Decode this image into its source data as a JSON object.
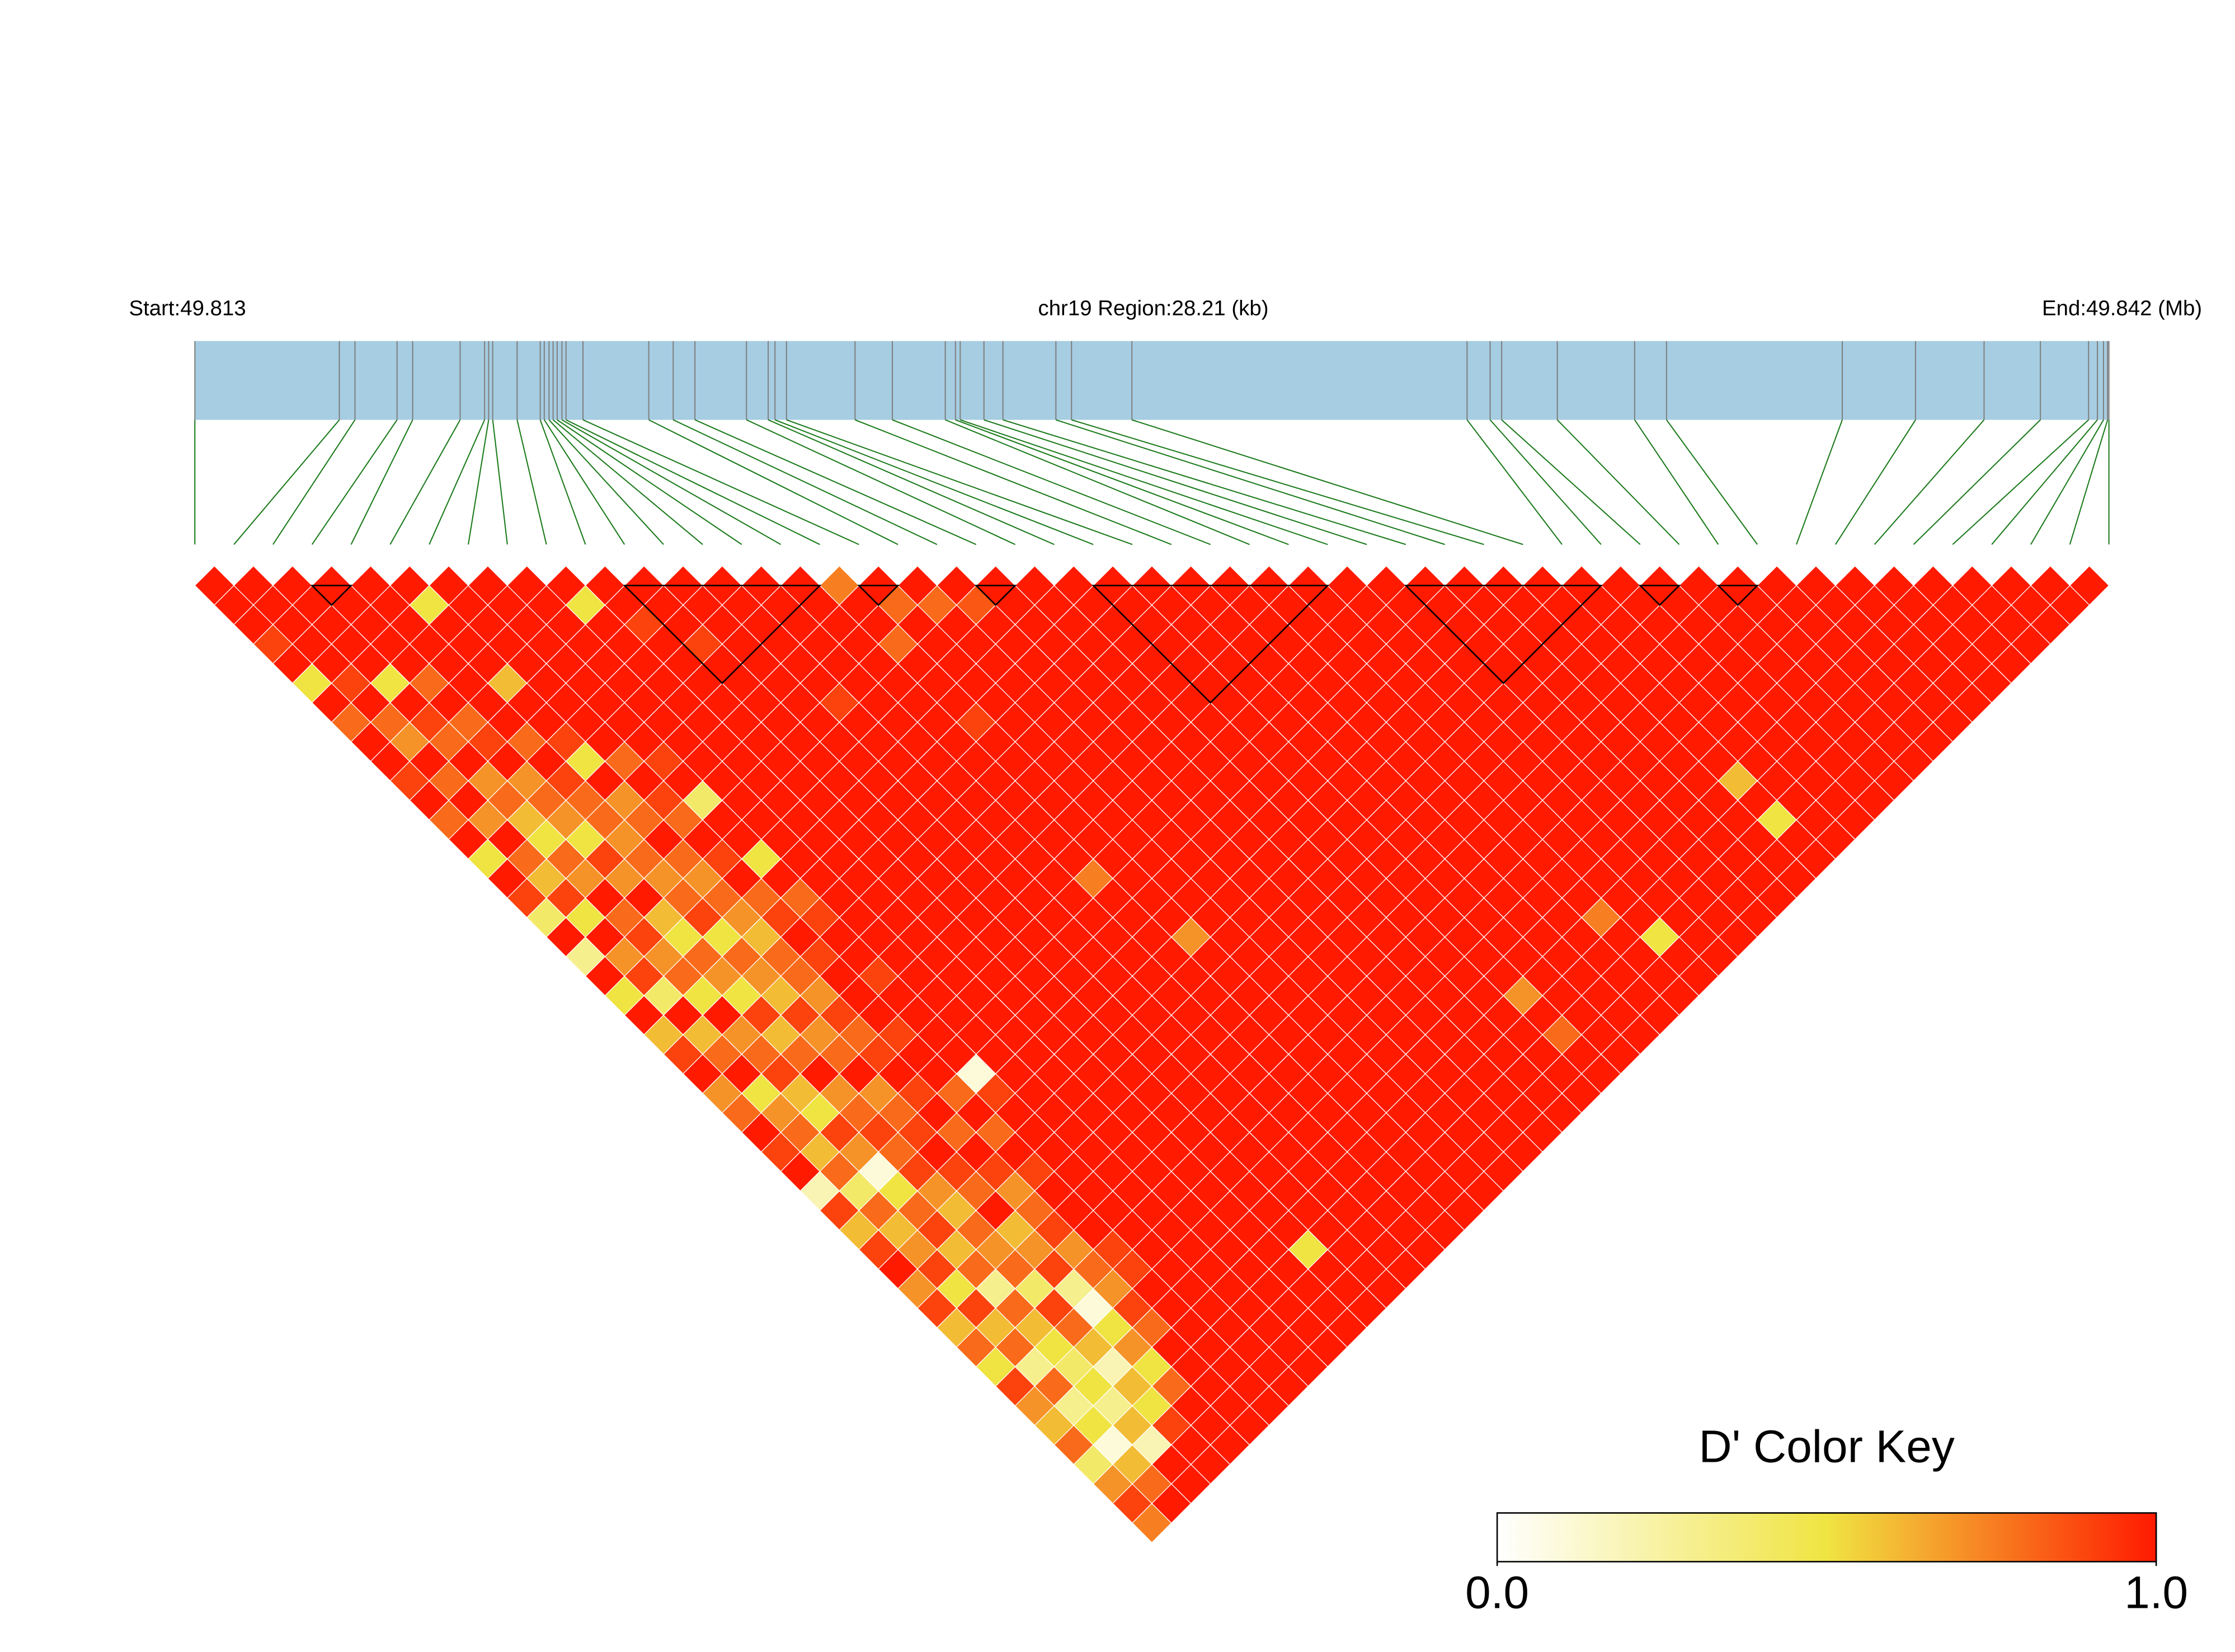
{
  "chart_data": {
    "type": "ld-heatmap",
    "start_label": "Start:49.813",
    "region_label": "chr19 Region:28.21 (kb)",
    "end_label": "End:49.842 (Mb)",
    "xlim": [
      0,
      28.21
    ],
    "positions": [
      0,
      2.13,
      2.36,
      2.98,
      3.21,
      3.91,
      4.27,
      4.33,
      4.39,
      4.75,
      5.09,
      5.15,
      5.22,
      5.28,
      5.34,
      5.41,
      5.47,
      5.72,
      6.69,
      7.05,
      7.37,
      8.13,
      8.45,
      8.55,
      8.72,
      9.73,
      10.28,
      11.06,
      11.21,
      11.28,
      11.63,
      11.91,
      12.69,
      12.92,
      13.81,
      18.75,
      19.09,
      19.26,
      20.08,
      21.22,
      21.69,
      24.28,
      25.36,
      26.37,
      27.2,
      27.91,
      28.04,
      28.13,
      28.19,
      28.21
    ],
    "bar_color": "#a6cde2",
    "marker_color": "#808080",
    "connector_color": "#1a7a1a",
    "blocks": [
      [
        3,
        4
      ],
      [
        11,
        16
      ],
      [
        17,
        18
      ],
      [
        20,
        21
      ],
      [
        23,
        29
      ],
      [
        31,
        36
      ],
      [
        37,
        38
      ],
      [
        39,
        40
      ]
    ],
    "dprime": [
      [
        1
      ],
      [
        1,
        1
      ],
      [
        1,
        1,
        1
      ],
      [
        0.9,
        1,
        1,
        1
      ],
      [
        1,
        1,
        1,
        1,
        1
      ],
      [
        0.5,
        1,
        1,
        1,
        1,
        1
      ],
      [
        1,
        0.9,
        1,
        1,
        1,
        0.5,
        1
      ],
      [
        0.8,
        1,
        0.5,
        1,
        1,
        1,
        1,
        1
      ],
      [
        1,
        0.8,
        1,
        0.8,
        1,
        1,
        1,
        1,
        1
      ],
      [
        1,
        0.7,
        0.9,
        1,
        1,
        1,
        1,
        1,
        1,
        1
      ],
      [
        0.9,
        1,
        0.8,
        0.8,
        1,
        0.6,
        1,
        1,
        1,
        0.5,
        1
      ],
      [
        1,
        0.8,
        1,
        0.9,
        1,
        1,
        1,
        1,
        1,
        1,
        1,
        1
      ],
      [
        0.8,
        1,
        0.7,
        1,
        0.8,
        1,
        1,
        1,
        1,
        1,
        0.9,
        1,
        1
      ],
      [
        1,
        0.7,
        0.8,
        0.7,
        1,
        0.9,
        1,
        1,
        1,
        1,
        1,
        1,
        1,
        1
      ],
      [
        0.5,
        1,
        0.6,
        0.8,
        0.9,
        0.5,
        1,
        1,
        1,
        1,
        1,
        0.9,
        1,
        1,
        1
      ],
      [
        1,
        0.8,
        0.5,
        0.7,
        0.8,
        1,
        0.8,
        1,
        1,
        1,
        1,
        1,
        1,
        1,
        1,
        1
      ],
      [
        0.9,
        0.6,
        0.8,
        0.5,
        0.8,
        0.7,
        1,
        0.9,
        1,
        1,
        1,
        1,
        1,
        1,
        1,
        1,
        0.75
      ],
      [
        0.4,
        0.9,
        0.7,
        0.9,
        0.7,
        0.8,
        0.9,
        1,
        1,
        1,
        1,
        1,
        1,
        1,
        1,
        1,
        1,
        1
      ],
      [
        1,
        0.5,
        1,
        0.7,
        0.8,
        1,
        0.8,
        0.4,
        1,
        1,
        1,
        1,
        1,
        1,
        1,
        1,
        1,
        0.8,
        1
      ],
      [
        0.3,
        1,
        0.8,
        1,
        0.7,
        0.8,
        1,
        1,
        1,
        1,
        1,
        1,
        1,
        0.9,
        1,
        1,
        0.8,
        1,
        0.8,
        1
      ],
      [
        1,
        0.7,
        0.9,
        0.6,
        0.8,
        0.7,
        0.9,
        1,
        1,
        1,
        1,
        1,
        1,
        1,
        1,
        1,
        1,
        1,
        1,
        0.85,
        1
      ],
      [
        0.5,
        0.9,
        0.7,
        0.5,
        0.9,
        0.8,
        1,
        0.5,
        1,
        1,
        1,
        1,
        1,
        1,
        1,
        1,
        1,
        1,
        1,
        1,
        1,
        1
      ],
      [
        1,
        0.4,
        0.8,
        0.8,
        0.5,
        0.7,
        0.8,
        1,
        1,
        1,
        1,
        1,
        1,
        1,
        1,
        1,
        1,
        1,
        1,
        1,
        1,
        1,
        1
      ],
      [
        0.6,
        1,
        0.5,
        0.7,
        0.8,
        0.6,
        0.9,
        0.8,
        1,
        1,
        1,
        1,
        1,
        1,
        1,
        1,
        0.9,
        1,
        1,
        1,
        1,
        1,
        1,
        1
      ],
      [
        0.9,
        0.6,
        1,
        0.5,
        0.7,
        0.8,
        1,
        0.9,
        1,
        1,
        1,
        1,
        1,
        1,
        1,
        1,
        1,
        1,
        1,
        1,
        1,
        1,
        1,
        1,
        1
      ],
      [
        1,
        0.8,
        0.7,
        0.9,
        0.6,
        0.8,
        0.9,
        1,
        1,
        1,
        1,
        1,
        1,
        1,
        1,
        1,
        1,
        1,
        1,
        1,
        1,
        1,
        1,
        1,
        1,
        1
      ],
      [
        0.7,
        1,
        0.8,
        0.6,
        0.9,
        0.7,
        1,
        1,
        1,
        1,
        1,
        1,
        1,
        1,
        1,
        1,
        1,
        1,
        1,
        1,
        1,
        1,
        1,
        1,
        1,
        1,
        1
      ],
      [
        0.8,
        0.5,
        0.9,
        0.8,
        0.7,
        0.9,
        1,
        0.9,
        1,
        1,
        1,
        1,
        1,
        1,
        1,
        1,
        1,
        1,
        1,
        1,
        1,
        1,
        1,
        1,
        1,
        1,
        1,
        1
      ],
      [
        1,
        0.7,
        0.6,
        1,
        0.8,
        0.8,
        1,
        1,
        1,
        1,
        1,
        1,
        1,
        1,
        1,
        1,
        1,
        1,
        1,
        1,
        1,
        1,
        1,
        1,
        1,
        1,
        1,
        1,
        1
      ],
      [
        0.9,
        0.8,
        0.5,
        0.7,
        1,
        0.9,
        0.9,
        1,
        1,
        1,
        1,
        1,
        1,
        1,
        1,
        1,
        1,
        1,
        1,
        1,
        1,
        1,
        1,
        1,
        1,
        1,
        1,
        1,
        1,
        1
      ],
      [
        1,
        0.6,
        0.9,
        0.8,
        0.7,
        1,
        1,
        1,
        1,
        1,
        1,
        1,
        1,
        1,
        1,
        0.75,
        1,
        1,
        1,
        1,
        1,
        1,
        1,
        1,
        1,
        1,
        1,
        1,
        1,
        1,
        1
      ],
      [
        0.2,
        0.8,
        0.7,
        0.9,
        0.8,
        0.9,
        1,
        1,
        1,
        1,
        1,
        1,
        1,
        1,
        1,
        1,
        1,
        1,
        1,
        1,
        1,
        1,
        1,
        1,
        1,
        1,
        1,
        1,
        1,
        1,
        1,
        1
      ],
      [
        0.9,
        0.4,
        0.1,
        0.8,
        0.9,
        1,
        0.8,
        0.1,
        1,
        1,
        1,
        1,
        1,
        1,
        1,
        1,
        1,
        1,
        1,
        1,
        1,
        1,
        1,
        1,
        1,
        1,
        1,
        1,
        1,
        1,
        1,
        1,
        1
      ],
      [
        0.6,
        0.8,
        0.5,
        0.9,
        1,
        0.8,
        1,
        0.9,
        1,
        1,
        1,
        1,
        1,
        1,
        1,
        1,
        1,
        1,
        1,
        1,
        1,
        1,
        1,
        1,
        1,
        1,
        1,
        1,
        1,
        1,
        1,
        1,
        1,
        1
      ],
      [
        0.9,
        0.6,
        0.8,
        0.7,
        0.9,
        1,
        0.8,
        1,
        1,
        1,
        1,
        1,
        1,
        1,
        1,
        1,
        0.7,
        1,
        1,
        1,
        1,
        1,
        1,
        1,
        1,
        1,
        1,
        1,
        1,
        1,
        1,
        1,
        1,
        1,
        1
      ],
      [
        1,
        0.7,
        0.9,
        0.6,
        0.8,
        0.9,
        1,
        1,
        1,
        1,
        1,
        1,
        1,
        1,
        1,
        1,
        1,
        1,
        1,
        1,
        1,
        1,
        1,
        1,
        1,
        1,
        1,
        1,
        1,
        1,
        1,
        1,
        1,
        1,
        1,
        1
      ],
      [
        0.7,
        0.9,
        0.6,
        0.8,
        1,
        0.7,
        0.9,
        1,
        1,
        1,
        1,
        1,
        1,
        1,
        1,
        1,
        1,
        1,
        1,
        1,
        1,
        1,
        1,
        1,
        1,
        1,
        1,
        1,
        1,
        1,
        1,
        1,
        1,
        1,
        1,
        1,
        1
      ],
      [
        0.9,
        0.5,
        0.8,
        0.7,
        0.6,
        0.8,
        1,
        1,
        1,
        1,
        1,
        1,
        1,
        1,
        1,
        1,
        1,
        1,
        1,
        1,
        1,
        1,
        1,
        1,
        1,
        1,
        1,
        1,
        1,
        1,
        1,
        1,
        1,
        1,
        1,
        1,
        1,
        1
      ],
      [
        0.6,
        0.9,
        0.3,
        0.8,
        0.7,
        0.9,
        1,
        1,
        1,
        1,
        1,
        1,
        1,
        1,
        1,
        1,
        1,
        1,
        1,
        1,
        1,
        1,
        1,
        1,
        1,
        1,
        1,
        1,
        1,
        1,
        1,
        1,
        1,
        1,
        1,
        1,
        1,
        1,
        1
      ],
      [
        0.8,
        0.6,
        0.8,
        0.4,
        0.9,
        0.7,
        1,
        1,
        1,
        1,
        1,
        1,
        1,
        1,
        1,
        1,
        1,
        1,
        1,
        1,
        1,
        1,
        1,
        1,
        1,
        1,
        1,
        1,
        1,
        1,
        1,
        1,
        1,
        1,
        1,
        1,
        1,
        1,
        1,
        1
      ],
      [
        0.5,
        0.8,
        0.6,
        0.9,
        0.3,
        0.8,
        0.9,
        1,
        1,
        1,
        1,
        1,
        1,
        1,
        1,
        1,
        1,
        1,
        1,
        1,
        1,
        1,
        1,
        1,
        1,
        1,
        1,
        1,
        1,
        1,
        1,
        1,
        1,
        1,
        1,
        1,
        1,
        1,
        1,
        1,
        1
      ],
      [
        0.9,
        0.3,
        0.5,
        0.8,
        0.1,
        0.7,
        0.9,
        1,
        1,
        1,
        1,
        1,
        1,
        1,
        1,
        1,
        1,
        1,
        1,
        1,
        1,
        1,
        1,
        1,
        1,
        1,
        1,
        1,
        1,
        1,
        1,
        1,
        1,
        1,
        1,
        1,
        1,
        1,
        1,
        1,
        1,
        1
      ],
      [
        0.7,
        0.8,
        0.4,
        0.6,
        0.5,
        0.9,
        1,
        1,
        1,
        1,
        1,
        1,
        1,
        1,
        1,
        1,
        1,
        1,
        1,
        1,
        1,
        1,
        1,
        1,
        1,
        1,
        1,
        1,
        1,
        1,
        1,
        1,
        1,
        1,
        1,
        1,
        1,
        1,
        1,
        1,
        1,
        1,
        1
      ],
      [
        0.6,
        0.3,
        0.5,
        0.2,
        0.7,
        0.8,
        1,
        1,
        1,
        1,
        1,
        1,
        1,
        1,
        1,
        1,
        1,
        1,
        1,
        1,
        1,
        1,
        1,
        1,
        1,
        1,
        1,
        1,
        1,
        1,
        1,
        1,
        1,
        1,
        1,
        1,
        1,
        1,
        1,
        1,
        1,
        1,
        1,
        1
      ],
      [
        0.8,
        0.5,
        0.3,
        0.6,
        0.5,
        1,
        1,
        1,
        1,
        1,
        1,
        1,
        1,
        1,
        1,
        1,
        1,
        1,
        1,
        1,
        1,
        1,
        1,
        0.7,
        1,
        1,
        1,
        0.75,
        1,
        1,
        1,
        1,
        1,
        1,
        0.6,
        1,
        1,
        1,
        1,
        1,
        1,
        1,
        1,
        1,
        1
      ],
      [
        0.4,
        0.1,
        0.6,
        0.5,
        0.8,
        1,
        1,
        1,
        1,
        1,
        1,
        0.5,
        1,
        1,
        1,
        1,
        1,
        1,
        1,
        1,
        1,
        1,
        1,
        1,
        1,
        1,
        1,
        1,
        1,
        1,
        1,
        1,
        1,
        1,
        1,
        1,
        1,
        1,
        1,
        1,
        1,
        1,
        1,
        1,
        1,
        1
      ],
      [
        0.7,
        0.6,
        0.2,
        0.9,
        1,
        1,
        1,
        1,
        1,
        1,
        1,
        1,
        1,
        1,
        1,
        1,
        1,
        1,
        1,
        1,
        1,
        1,
        1,
        0.8,
        1,
        1,
        1,
        1,
        0.5,
        1,
        1,
        1,
        1,
        1,
        0.5,
        1,
        1,
        1,
        1,
        1,
        1,
        1,
        1,
        1,
        1,
        1,
        1
      ],
      [
        0.9,
        0.8,
        1,
        1,
        1,
        1,
        1,
        1,
        1,
        1,
        1,
        1,
        1,
        1,
        1,
        1,
        1,
        1,
        1,
        1,
        1,
        1,
        1,
        1,
        1,
        1,
        1,
        1,
        1,
        1,
        1,
        1,
        1,
        1,
        1,
        1,
        1,
        1,
        1,
        1,
        1,
        1,
        1,
        1,
        1,
        1,
        1,
        1
      ],
      [
        0.75,
        1,
        1,
        1,
        1,
        1,
        1,
        1,
        1,
        1,
        1,
        1,
        1,
        1,
        1,
        1,
        1,
        1,
        1,
        1,
        1,
        1,
        1,
        1,
        1,
        1,
        1,
        1,
        1,
        1,
        1,
        1,
        1,
        1,
        1,
        1,
        1,
        1,
        1,
        1,
        1,
        1,
        1,
        1,
        1,
        1,
        1,
        1,
        1
      ]
    ],
    "colors": [
      "#ffffff",
      "#f0e442",
      "#ff1a00"
    ],
    "clim": [
      0,
      1
    ],
    "color_key_title": "D' Color Key",
    "color_key_ticks": [
      {
        "value": 0,
        "label": "0.0"
      },
      {
        "value": 1,
        "label": "1.0"
      }
    ],
    "color_key_position": "bottom-right"
  }
}
